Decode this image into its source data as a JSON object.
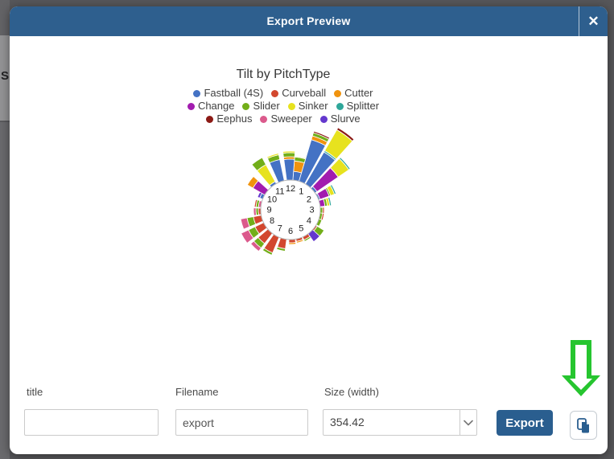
{
  "backdrop": {
    "partial_letter": "S"
  },
  "theme": {
    "header_bg": "#2E5F8E",
    "button_bg": "#2A5E8F",
    "icon_blue": "#2A5E8F",
    "arrow_green": "#26C52F"
  },
  "modal": {
    "title": "Export Preview",
    "close_label": "✕"
  },
  "chart_data": {
    "type": "polar-clock-rose",
    "title": "Tilt by PitchType",
    "legend_rows": [
      [
        "Fastball (4S)",
        "Curveball",
        "Cutter"
      ],
      [
        "Change",
        "Slider",
        "Sinker",
        "Splitter"
      ],
      [
        "Eephus",
        "Sweeper",
        "Slurve"
      ]
    ],
    "colors": {
      "Fastball (4S)": "#4472C4",
      "Curveball": "#D2472E",
      "Cutter": "#F0930E",
      "Change": "#A21CAF",
      "Slider": "#72AE19",
      "Sinker": "#E7E21E",
      "Splitter": "#2FA79A",
      "Eephus": "#8C1A15",
      "Sweeper": "#DB5A8C",
      "Slurve": "#6438CE"
    },
    "clock_labels": [
      "12",
      "1",
      "2",
      "3",
      "4",
      "5",
      "6",
      "7",
      "8",
      "9",
      "10",
      "11"
    ],
    "clock_radius": 37,
    "wedges": [
      {
        "hour": 0.35,
        "segments": [
          {
            "pitch": "Fastball (4S)",
            "length": 11
          },
          {
            "pitch": "Cutter",
            "length": 13
          },
          {
            "pitch": "Slider",
            "length": 5
          },
          {
            "pitch": "Sinker",
            "length": 1
          }
        ]
      },
      {
        "hour": 0.75,
        "segments": [
          {
            "pitch": "Fastball (4S)",
            "length": 54
          },
          {
            "pitch": "Cutter",
            "length": 5
          },
          {
            "pitch": "Slider",
            "length": 4
          },
          {
            "pitch": "Eephus",
            "length": 2
          }
        ]
      },
      {
        "hour": 1.2,
        "segments": [
          {
            "pitch": "Fastball (4S)",
            "length": 46
          },
          {
            "pitch": "Splitter",
            "length": 2
          },
          {
            "pitch": "Sinker",
            "length": 30
          },
          {
            "pitch": "Eephus",
            "length": 3
          }
        ]
      },
      {
        "hour": 1.65,
        "segments": [
          {
            "pitch": "Fastball (4S)",
            "length": 3
          },
          {
            "pitch": "Change",
            "length": 32
          },
          {
            "pitch": "Sinker",
            "length": 16
          },
          {
            "pitch": "Splitter",
            "length": 2
          }
        ]
      },
      {
        "hour": 2.15,
        "segments": [
          {
            "pitch": "Fastball (4S)",
            "length": 2
          },
          {
            "pitch": "Change",
            "length": 12
          },
          {
            "pitch": "Slider",
            "length": 2
          },
          {
            "pitch": "Sinker",
            "length": 5
          },
          {
            "pitch": "Splitter",
            "length": 2
          }
        ]
      },
      {
        "hour": 2.6,
        "segments": [
          {
            "pitch": "Change",
            "length": 6
          },
          {
            "pitch": "Slider",
            "length": 3
          },
          {
            "pitch": "Sinker",
            "length": 3
          },
          {
            "pitch": "Splitter",
            "length": 2
          }
        ]
      },
      {
        "hour": 3.05,
        "segments": [
          {
            "pitch": "Slider",
            "length": 3
          },
          {
            "pitch": "Curveball",
            "length": 2
          }
        ]
      },
      {
        "hour": 3.4,
        "segments": [
          {
            "pitch": "Slider",
            "length": 3
          },
          {
            "pitch": "Curveball",
            "length": 2
          }
        ]
      },
      {
        "hour": 3.8,
        "segments": [
          {
            "pitch": "Slider",
            "length": 4
          }
        ]
      },
      {
        "hour": 4.25,
        "segments": [
          {
            "pitch": "Curveball",
            "length": 2
          },
          {
            "pitch": "Slider",
            "length": 10
          }
        ]
      },
      {
        "hour": 4.6,
        "segments": [
          {
            "pitch": "Slurve",
            "length": 12
          }
        ]
      },
      {
        "hour": 5.0,
        "segments": [
          {
            "pitch": "Curveball",
            "length": 4
          },
          {
            "pitch": "Slider",
            "length": 2
          }
        ]
      },
      {
        "hour": 5.45,
        "segments": [
          {
            "pitch": "Curveball",
            "length": 3
          },
          {
            "pitch": "Cutter",
            "length": 2
          }
        ]
      },
      {
        "hour": 5.9,
        "segments": [
          {
            "pitch": "Curveball",
            "length": 4
          },
          {
            "pitch": "Cutter",
            "length": 2
          }
        ]
      },
      {
        "hour": 6.45,
        "segments": [
          {
            "pitch": "Curveball",
            "length": 12
          },
          {
            "pitch": "Slider",
            "length": 3
          }
        ]
      },
      {
        "hour": 6.95,
        "segments": [
          {
            "pitch": "Curveball",
            "length": 21
          },
          {
            "pitch": "Slider",
            "length": 3
          }
        ]
      },
      {
        "hour": 7.45,
        "segments": [
          {
            "pitch": "Curveball",
            "length": 16
          },
          {
            "pitch": "Slider",
            "length": 7
          },
          {
            "pitch": "Sweeper",
            "length": 5
          }
        ]
      },
      {
        "hour": 7.95,
        "segments": [
          {
            "pitch": "Curveball",
            "length": 12
          },
          {
            "pitch": "Slider",
            "length": 9
          },
          {
            "pitch": "Sweeper",
            "length": 10
          }
        ]
      },
      {
        "hour": 8.45,
        "segments": [
          {
            "pitch": "Curveball",
            "length": 10
          },
          {
            "pitch": "Slider",
            "length": 8
          },
          {
            "pitch": "Sweeper",
            "length": 8
          }
        ]
      },
      {
        "hour": 8.9,
        "segments": [
          {
            "pitch": "Curveball",
            "length": 3
          },
          {
            "pitch": "Slider",
            "length": 3
          },
          {
            "pitch": "Sweeper",
            "length": 3
          }
        ]
      },
      {
        "hour": 9.35,
        "segments": [
          {
            "pitch": "Sweeper",
            "length": 3
          },
          {
            "pitch": "Slider",
            "length": 3
          },
          {
            "pitch": "Curveball",
            "length": 2
          }
        ]
      },
      {
        "hour": 9.9,
        "segments": [
          {
            "pitch": "Fastball (4S)",
            "length": 4
          },
          {
            "pitch": "Slurve",
            "length": 3
          }
        ]
      },
      {
        "hour": 10.2,
        "segments": [
          {
            "pitch": "Change",
            "length": 17
          },
          {
            "pitch": "Cutter",
            "length": 8
          }
        ]
      },
      {
        "hour": 10.85,
        "segments": [
          {
            "pitch": "Fastball (4S)",
            "length": 3
          },
          {
            "pitch": "Sinker",
            "length": 24
          },
          {
            "pitch": "Slider",
            "length": 10
          }
        ]
      },
      {
        "hour": 11.4,
        "segments": [
          {
            "pitch": "Fastball (4S)",
            "length": 27
          },
          {
            "pitch": "Slider",
            "length": 6
          },
          {
            "pitch": "Sinker",
            "length": 2
          }
        ]
      },
      {
        "hour": 11.95,
        "segments": [
          {
            "pitch": "Fastball (4S)",
            "length": 26
          },
          {
            "pitch": "Cutter",
            "length": 3
          },
          {
            "pitch": "Slider",
            "length": 5
          },
          {
            "pitch": "Sinker",
            "length": 2
          }
        ]
      }
    ]
  },
  "form": {
    "title_label": "title",
    "title_value": "",
    "filename_label": "Filename",
    "filename_value": "export",
    "size_label": "Size (width)",
    "size_value": "354.42",
    "export_label": "Export"
  }
}
